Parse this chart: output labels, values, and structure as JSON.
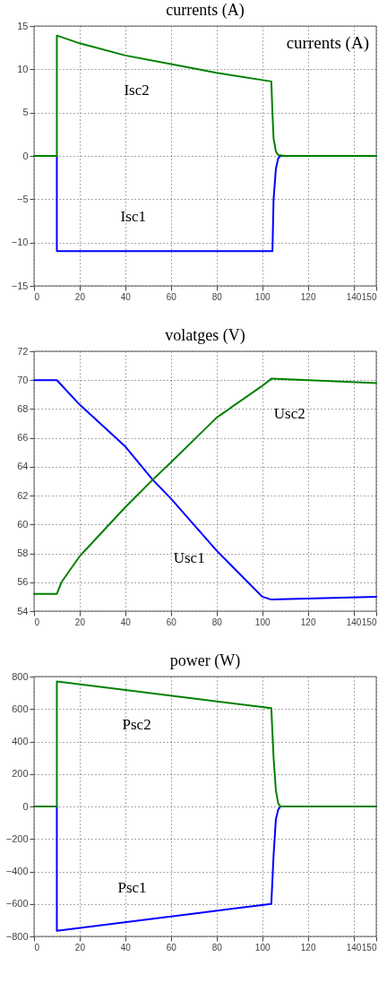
{
  "chart_data": [
    {
      "type": "line",
      "title": "currents (A)",
      "xlim": [
        0,
        150
      ],
      "xticks": [
        0,
        20,
        40,
        60,
        80,
        100,
        120,
        140,
        150
      ],
      "ylim": [
        -15,
        15
      ],
      "yticks": [
        -15,
        -10,
        -5,
        0,
        5,
        10,
        15
      ],
      "grid": true,
      "series": [
        {
          "color": "#0000ff",
          "x": [
            0,
            10,
            10,
            40,
            80,
            104.5,
            105,
            106,
            107,
            108,
            150
          ],
          "values": [
            0,
            0,
            -11,
            -11,
            -11,
            -11,
            -5,
            -1.5,
            -0.3,
            0,
            0
          ]
        },
        {
          "color": "#008000",
          "x": [
            0,
            10,
            10,
            20,
            40,
            60,
            80,
            104,
            104.5,
            105,
            106,
            107,
            110,
            150
          ],
          "values": [
            0,
            0,
            13.9,
            13.0,
            11.6,
            10.6,
            9.6,
            8.6,
            5,
            2,
            0.5,
            0.1,
            0,
            0
          ]
        }
      ],
      "annotations": [
        "currents (A)",
        {
          "text": "Isc2",
          "x": 45,
          "y": 11.5
        },
        {
          "text": "Isc1",
          "x": 43.5,
          "y": -11
        }
      ]
    },
    {
      "type": "line",
      "title": "volatges (V)",
      "xlim": [
        0,
        150
      ],
      "xticks": [
        0,
        20,
        40,
        60,
        80,
        100,
        120,
        140,
        150
      ],
      "ylim": [
        54,
        72
      ],
      "yticks": [
        54,
        56,
        58,
        60,
        62,
        64,
        66,
        68,
        70,
        72
      ],
      "grid": true,
      "series": [
        {
          "color": "#0000ff",
          "x": [
            0,
            10,
            20,
            40,
            52,
            60,
            80,
            100,
            104,
            150
          ],
          "values": [
            70,
            70,
            68.3,
            65.4,
            63.1,
            61.8,
            58.2,
            55,
            54.8,
            55
          ]
        },
        {
          "color": "#008000",
          "x": [
            0,
            10,
            12,
            20,
            40,
            52,
            60,
            80,
            100,
            104,
            150
          ],
          "values": [
            55.2,
            55.2,
            56,
            57.8,
            61.2,
            63.1,
            64.3,
            67.4,
            69.6,
            70.1,
            69.8
          ]
        }
      ],
      "annotations": [
        {
          "text": "Usc2",
          "x": 112,
          "y": 70
        },
        {
          "text": "Usc1",
          "x": 68,
          "y": 60
        }
      ]
    },
    {
      "type": "line",
      "title": "power (W)",
      "xlim": [
        0,
        150
      ],
      "xticks": [
        0,
        20,
        40,
        60,
        80,
        100,
        120,
        140,
        150
      ],
      "ylim": [
        -800,
        800
      ],
      "yticks": [
        -800,
        -600,
        -400,
        -200,
        0,
        200,
        400,
        600,
        800
      ],
      "grid": true,
      "series": [
        {
          "color": "#0000ff",
          "x": [
            0,
            10,
            10,
            104,
            105,
            106,
            107,
            108,
            150
          ],
          "values": [
            0,
            0,
            -765,
            -600,
            -300,
            -80,
            -20,
            0,
            0
          ]
        },
        {
          "color": "#008000",
          "x": [
            0,
            10,
            10,
            104,
            105,
            106,
            107,
            108,
            150
          ],
          "values": [
            0,
            0,
            770,
            605,
            300,
            100,
            20,
            0,
            0
          ]
        }
      ],
      "annotations": [
        {
          "text": "Psc2",
          "x": 45,
          "y": 710
        },
        {
          "text": "Psc1",
          "x": 43,
          "y": -710
        }
      ]
    }
  ]
}
